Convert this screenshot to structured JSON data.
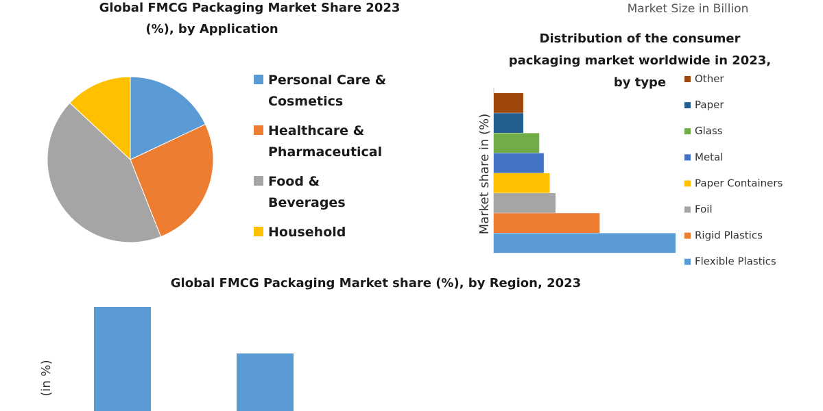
{
  "header": {
    "market_size_label": "Market Size in Billion"
  },
  "chart_data": [
    {
      "type": "pie",
      "title_line1": "Global FMCG Packaging Market Share 2023",
      "title_line2": "(%), by Application",
      "slices": [
        {
          "name_line1": "Personal Care &",
          "name_line2": "Cosmetics",
          "value": 18,
          "color": "#5b9bd5"
        },
        {
          "name_line1": "Healthcare &",
          "name_line2": "Pharmaceutical",
          "value": 26,
          "color": "#ed7d31"
        },
        {
          "name_line1": "Food &",
          "name_line2": "Beverages",
          "value": 43,
          "color": "#a5a5a5"
        },
        {
          "name_line1": "Household",
          "name_line2": "",
          "value": 13,
          "color": "#ffc000"
        }
      ],
      "legend_position": "right"
    },
    {
      "type": "bar",
      "orientation": "horizontal",
      "title_line1": "Distribution of the consumer",
      "title_line2": "packaging market worldwide in 2023,",
      "title_line3": "by type",
      "ylabel": "Market share in (%)",
      "xlim": [
        0,
        40
      ],
      "series": [
        {
          "name": "Other",
          "value": 6.5,
          "color": "#9e480e"
        },
        {
          "name": "Paper",
          "value": 6.5,
          "color": "#255e91"
        },
        {
          "name": "Glass",
          "value": 10,
          "color": "#70ad47"
        },
        {
          "name": "Metal",
          "value": 11,
          "color": "#4472c4"
        },
        {
          "name": "Paper Containers",
          "value": 12.3,
          "color": "#ffc000"
        },
        {
          "name": "Foil",
          "value": 13.6,
          "color": "#a5a5a5"
        },
        {
          "name": "Rigid Plastics",
          "value": 23.3,
          "color": "#ed7d31"
        },
        {
          "name": "Flexible Plastics",
          "value": 40,
          "color": "#5b9bd5"
        }
      ],
      "legend_position": "right"
    },
    {
      "type": "bar",
      "orientation": "vertical",
      "title": "Global FMCG Packaging Market share (%), by Region, 2023",
      "ylabel": "(in %)",
      "ylim": [
        0,
        40
      ],
      "series": [
        {
          "name": "",
          "value": 38,
          "color": "#5b9bd5"
        },
        {
          "name": "",
          "value": 21,
          "color": "#5b9bd5"
        }
      ],
      "grid": false
    }
  ]
}
